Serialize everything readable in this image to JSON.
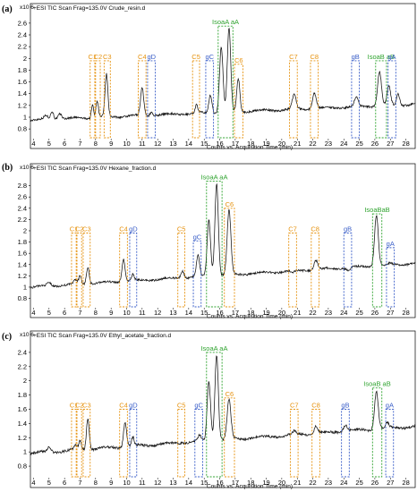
{
  "chart_data": [
    {
      "type": "line",
      "panel_label": "(a)",
      "header": "+ESI TIC Scan Frag=135.0V Crude_resin.d",
      "xlabel": "Counts vs. Acquisition Time (min)",
      "ylabel_scale": "x10 6",
      "xlim": [
        3.8,
        28.6
      ],
      "ylim": [
        0.65,
        2.75
      ],
      "xticks": [
        4,
        5,
        6,
        7,
        8,
        9,
        10,
        11,
        12,
        13,
        14,
        15,
        16,
        17,
        18,
        19,
        20,
        21,
        22,
        23,
        24,
        25,
        26,
        27,
        28
      ],
      "yticks": [
        0.8,
        1,
        1.2,
        1.4,
        1.6,
        1.8,
        2,
        2.2,
        2.4,
        2.6
      ],
      "ytick_labels": [
        "0.8",
        "1",
        "1.2",
        "1.4",
        "1.6",
        "1.8",
        "2",
        "2.2",
        "2.4",
        "2.6"
      ],
      "baseline": [
        [
          3.8,
          0.95
        ],
        [
          28.6,
          1.22
        ]
      ],
      "peaks": [
        {
          "x": 4.8,
          "h": 1.02,
          "w": 0.12
        },
        {
          "x": 5.2,
          "h": 1.1,
          "w": 0.1
        },
        {
          "x": 5.7,
          "h": 1.07,
          "w": 0.12
        },
        {
          "x": 7.8,
          "h": 1.22,
          "w": 0.07
        },
        {
          "x": 8.1,
          "h": 1.28,
          "w": 0.08
        },
        {
          "x": 8.7,
          "h": 1.72,
          "w": 0.09
        },
        {
          "x": 11.0,
          "h": 1.5,
          "w": 0.1
        },
        {
          "x": 11.6,
          "h": 1.1,
          "w": 0.08
        },
        {
          "x": 14.5,
          "h": 1.2,
          "w": 0.08
        },
        {
          "x": 15.4,
          "h": 1.38,
          "w": 0.1
        },
        {
          "x": 16.1,
          "h": 2.2,
          "w": 0.11
        },
        {
          "x": 16.6,
          "h": 2.5,
          "w": 0.11
        },
        {
          "x": 17.2,
          "h": 1.65,
          "w": 0.1
        },
        {
          "x": 20.8,
          "h": 1.38,
          "w": 0.12
        },
        {
          "x": 22.1,
          "h": 1.42,
          "w": 0.12
        },
        {
          "x": 24.8,
          "h": 1.33,
          "w": 0.12
        },
        {
          "x": 26.3,
          "h": 1.78,
          "w": 0.12
        },
        {
          "x": 26.9,
          "h": 1.52,
          "w": 0.11
        },
        {
          "x": 27.5,
          "h": 1.4,
          "w": 0.1
        }
      ],
      "markers": [
        {
          "label": "C1",
          "x1": 7.65,
          "x2": 7.95,
          "top": 1.96,
          "color": "#e6920e"
        },
        {
          "label": "C2",
          "x1": 8.0,
          "x2": 8.3,
          "top": 1.96,
          "color": "#e6920e"
        },
        {
          "label": "C3",
          "x1": 8.55,
          "x2": 8.95,
          "top": 1.96,
          "color": "#e6920e"
        },
        {
          "label": "C4",
          "x1": 10.75,
          "x2": 11.25,
          "top": 1.96,
          "color": "#e6920e"
        },
        {
          "label": "gD",
          "x1": 11.35,
          "x2": 11.85,
          "top": 1.96,
          "color": "#3a5ec8"
        },
        {
          "label": "C5",
          "x1": 14.25,
          "x2": 14.7,
          "top": 1.96,
          "color": "#e6920e"
        },
        {
          "label": "gC",
          "x1": 15.1,
          "x2": 15.6,
          "top": 1.96,
          "color": "#3a5ec8"
        },
        {
          "label": "IsoaA aA",
          "x1": 15.9,
          "x2": 16.85,
          "top": 2.55,
          "color": "#2fa32f"
        },
        {
          "label": "C6",
          "x1": 16.95,
          "x2": 17.5,
          "top": 1.9,
          "color": "#e6920e"
        },
        {
          "label": "C7",
          "x1": 20.5,
          "x2": 21.0,
          "top": 1.96,
          "color": "#e6920e"
        },
        {
          "label": "C8",
          "x1": 21.85,
          "x2": 22.35,
          "top": 1.96,
          "color": "#e6920e"
        },
        {
          "label": "gB",
          "x1": 24.5,
          "x2": 25.0,
          "top": 1.96,
          "color": "#3a5ec8"
        },
        {
          "label": "IsoaB aB",
          "x1": 26.05,
          "x2": 26.75,
          "top": 1.96,
          "color": "#2fa32f"
        },
        {
          "label": "gA",
          "x1": 26.85,
          "x2": 27.35,
          "top": 1.96,
          "color": "#3a5ec8"
        }
      ]
    },
    {
      "type": "line",
      "panel_label": "(b)",
      "header": "+ESI TIC Scan Frag=135.0V Hexane_fraction.d",
      "xlabel": "Counts vs. Acquisition Time (min)",
      "ylabel_scale": "x10 6",
      "xlim": [
        3.8,
        28.6
      ],
      "ylim": [
        0.65,
        3.0
      ],
      "xticks": [
        4,
        5,
        6,
        7,
        8,
        9,
        10,
        11,
        12,
        13,
        14,
        15,
        16,
        17,
        18,
        19,
        20,
        21,
        22,
        23,
        24,
        25,
        26,
        27,
        28
      ],
      "yticks": [
        0.8,
        1,
        1.2,
        1.4,
        1.6,
        1.8,
        2,
        2.2,
        2.4,
        2.6,
        2.8
      ],
      "ytick_labels": [
        "0.8",
        "1",
        "1.2",
        "1.4",
        "1.6",
        "1.8",
        "2",
        "2.2",
        "2.4",
        "2.6",
        "2.8"
      ],
      "baseline": [
        [
          3.8,
          1.0
        ],
        [
          28.6,
          1.42
        ]
      ],
      "peaks": [
        {
          "x": 5.0,
          "h": 1.08,
          "w": 0.12
        },
        {
          "x": 6.7,
          "h": 1.12,
          "w": 0.1
        },
        {
          "x": 7.0,
          "h": 1.2,
          "w": 0.08
        },
        {
          "x": 7.5,
          "h": 1.36,
          "w": 0.09
        },
        {
          "x": 9.8,
          "h": 1.5,
          "w": 0.1
        },
        {
          "x": 10.4,
          "h": 1.22,
          "w": 0.08
        },
        {
          "x": 13.6,
          "h": 1.3,
          "w": 0.1
        },
        {
          "x": 14.6,
          "h": 1.55,
          "w": 0.1
        },
        {
          "x": 15.3,
          "h": 2.2,
          "w": 0.11
        },
        {
          "x": 15.8,
          "h": 2.85,
          "w": 0.11
        },
        {
          "x": 16.6,
          "h": 2.35,
          "w": 0.12
        },
        {
          "x": 20.7,
          "h": 1.25,
          "w": 0.12
        },
        {
          "x": 22.2,
          "h": 1.48,
          "w": 0.12
        },
        {
          "x": 24.3,
          "h": 1.3,
          "w": 0.12
        },
        {
          "x": 26.1,
          "h": 2.28,
          "w": 0.12
        },
        {
          "x": 27.0,
          "h": 1.42,
          "w": 0.1
        }
      ],
      "markers": [
        {
          "label": "C1",
          "x1": 6.45,
          "x2": 6.75,
          "top": 1.96,
          "color": "#e6920e"
        },
        {
          "label": "C2",
          "x1": 6.8,
          "x2": 7.1,
          "top": 1.96,
          "color": "#e6920e"
        },
        {
          "label": "C3",
          "x1": 7.2,
          "x2": 7.65,
          "top": 1.96,
          "color": "#e6920e"
        },
        {
          "label": "C4",
          "x1": 9.55,
          "x2": 10.05,
          "top": 1.96,
          "color": "#e6920e"
        },
        {
          "label": "gD",
          "x1": 10.2,
          "x2": 10.65,
          "top": 1.96,
          "color": "#3a5ec8"
        },
        {
          "label": "C5",
          "x1": 13.3,
          "x2": 13.75,
          "top": 1.96,
          "color": "#e6920e"
        },
        {
          "label": "gC",
          "x1": 14.3,
          "x2": 14.8,
          "top": 1.82,
          "color": "#3a5ec8"
        },
        {
          "label": "IsoaA aA",
          "x1": 15.15,
          "x2": 16.15,
          "top": 2.88,
          "color": "#2fa32f"
        },
        {
          "label": "C6",
          "x1": 16.3,
          "x2": 16.95,
          "top": 2.4,
          "color": "#e6920e"
        },
        {
          "label": "C7",
          "x1": 20.45,
          "x2": 20.95,
          "top": 1.96,
          "color": "#e6920e"
        },
        {
          "label": "C8",
          "x1": 21.9,
          "x2": 22.4,
          "top": 1.96,
          "color": "#e6920e"
        },
        {
          "label": "gB",
          "x1": 24.0,
          "x2": 24.5,
          "top": 1.96,
          "color": "#3a5ec8"
        },
        {
          "label": "IsoaBaB",
          "x1": 25.85,
          "x2": 26.45,
          "top": 2.3,
          "color": "#2fa32f"
        },
        {
          "label": "gA",
          "x1": 26.75,
          "x2": 27.25,
          "top": 1.7,
          "color": "#3a5ec8"
        }
      ]
    },
    {
      "type": "line",
      "panel_label": "(c)",
      "header": "+ESI TIC Scan Frag=135.0V Ethyl_acetate_fraction.d",
      "xlabel": "Counts vs. Acquisition Time (min)",
      "ylabel_scale": "x10 6",
      "xlim": [
        3.8,
        28.6
      ],
      "ylim": [
        0.65,
        2.55
      ],
      "xticks": [
        4,
        5,
        6,
        7,
        8,
        9,
        10,
        11,
        12,
        13,
        14,
        15,
        16,
        17,
        18,
        19,
        20,
        21,
        22,
        23,
        24,
        25,
        26,
        27,
        28
      ],
      "yticks": [
        0.8,
        1,
        1.2,
        1.4,
        1.6,
        1.8,
        2,
        2.2,
        2.4
      ],
      "ytick_labels": [
        "0.8",
        "1",
        "1.2",
        "1.4",
        "1.6",
        "1.8",
        "2",
        "2.2",
        "2.4"
      ],
      "baseline": [
        [
          3.8,
          0.98
        ],
        [
          28.6,
          1.36
        ]
      ],
      "peaks": [
        {
          "x": 5.0,
          "h": 1.06,
          "w": 0.12
        },
        {
          "x": 6.7,
          "h": 1.08,
          "w": 0.1
        },
        {
          "x": 7.0,
          "h": 1.15,
          "w": 0.08
        },
        {
          "x": 7.5,
          "h": 1.48,
          "w": 0.09
        },
        {
          "x": 9.9,
          "h": 1.42,
          "w": 0.1
        },
        {
          "x": 10.4,
          "h": 1.2,
          "w": 0.08
        },
        {
          "x": 13.6,
          "h": 1.14,
          "w": 0.1
        },
        {
          "x": 14.7,
          "h": 1.22,
          "w": 0.1
        },
        {
          "x": 15.3,
          "h": 2.0,
          "w": 0.11
        },
        {
          "x": 15.8,
          "h": 2.38,
          "w": 0.11
        },
        {
          "x": 16.6,
          "h": 1.72,
          "w": 0.12
        },
        {
          "x": 20.8,
          "h": 1.28,
          "w": 0.12
        },
        {
          "x": 22.2,
          "h": 1.36,
          "w": 0.12
        },
        {
          "x": 24.1,
          "h": 1.38,
          "w": 0.12
        },
        {
          "x": 26.1,
          "h": 1.86,
          "w": 0.12
        },
        {
          "x": 26.8,
          "h": 1.4,
          "w": 0.1
        }
      ],
      "markers": [
        {
          "label": "C1",
          "x1": 6.45,
          "x2": 6.75,
          "top": 1.6,
          "color": "#e6920e"
        },
        {
          "label": "C2",
          "x1": 6.8,
          "x2": 7.1,
          "top": 1.6,
          "color": "#e6920e"
        },
        {
          "label": "C3",
          "x1": 7.2,
          "x2": 7.65,
          "top": 1.6,
          "color": "#e6920e"
        },
        {
          "label": "C4",
          "x1": 9.55,
          "x2": 10.05,
          "top": 1.6,
          "color": "#e6920e"
        },
        {
          "label": "gD",
          "x1": 10.2,
          "x2": 10.65,
          "top": 1.6,
          "color": "#3a5ec8"
        },
        {
          "label": "C5",
          "x1": 13.3,
          "x2": 13.75,
          "top": 1.6,
          "color": "#e6920e"
        },
        {
          "label": "gC",
          "x1": 14.4,
          "x2": 14.9,
          "top": 1.6,
          "color": "#3a5ec8"
        },
        {
          "label": "IsoaA aA",
          "x1": 15.15,
          "x2": 16.15,
          "top": 2.4,
          "color": "#2fa32f"
        },
        {
          "label": "C6",
          "x1": 16.3,
          "x2": 16.95,
          "top": 1.76,
          "color": "#e6920e"
        },
        {
          "label": "C7",
          "x1": 20.55,
          "x2": 21.05,
          "top": 1.6,
          "color": "#e6920e"
        },
        {
          "label": "C8",
          "x1": 21.95,
          "x2": 22.45,
          "top": 1.6,
          "color": "#e6920e"
        },
        {
          "label": "gB",
          "x1": 23.85,
          "x2": 24.35,
          "top": 1.6,
          "color": "#3a5ec8"
        },
        {
          "label": "IsoaB aB",
          "x1": 25.85,
          "x2": 26.45,
          "top": 1.9,
          "color": "#2fa32f"
        },
        {
          "label": "gA",
          "x1": 26.7,
          "x2": 27.2,
          "top": 1.6,
          "color": "#3a5ec8"
        }
      ]
    }
  ]
}
